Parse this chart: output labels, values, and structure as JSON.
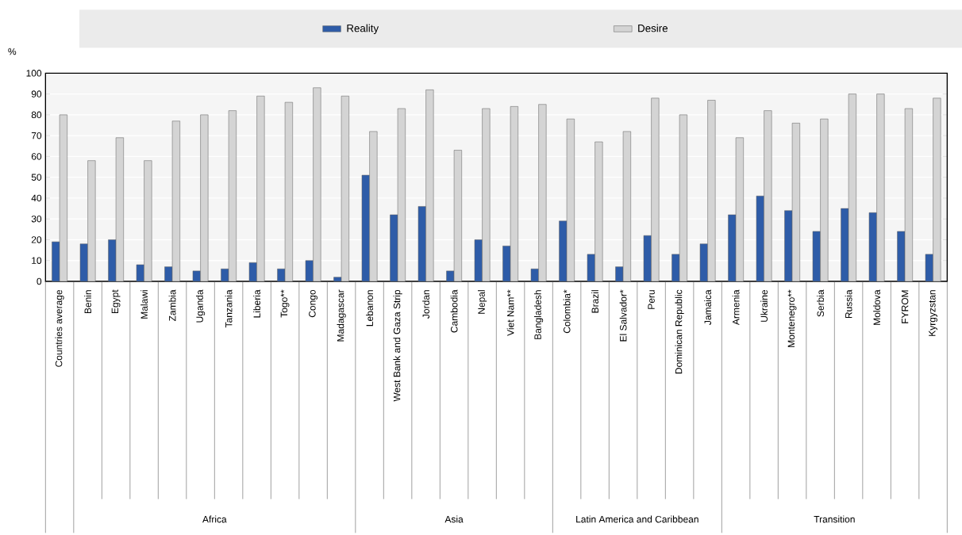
{
  "chart_data": {
    "type": "bar",
    "ylabel": "%",
    "categories": [
      "Countries average",
      "Benin",
      "Egypt",
      "Malawi",
      "Zambia",
      "Uganda",
      "Tanzania",
      "Liberia",
      "Togo**",
      "Congo",
      "Madagascar",
      "Lebanon",
      "West Bank and Gaza Strip",
      "Jordan",
      "Cambodia",
      "Nepal",
      "Viet Nam**",
      "Bangladesh",
      "Colombia*",
      "Brazil",
      "El Salvador*",
      "Peru",
      "Dominican Republic",
      "Jamaica",
      "Armenia",
      "Ukraine",
      "Montenegro**",
      "Serbia",
      "Russia",
      "Moldova",
      "FYROM",
      "Kyrgyzstan"
    ],
    "series": [
      {
        "name": "Reality",
        "color": "#2e5ca8",
        "values": [
          19,
          18,
          20,
          8,
          7,
          5,
          6,
          9,
          6,
          10,
          2,
          51,
          32,
          36,
          5,
          20,
          17,
          6,
          29,
          13,
          7,
          22,
          13,
          18,
          32,
          41,
          34,
          24,
          35,
          33,
          24,
          13
        ]
      },
      {
        "name": "Desire",
        "color": "#d4d4d4",
        "values": [
          80,
          58,
          69,
          58,
          77,
          80,
          82,
          89,
          86,
          93,
          89,
          72,
          83,
          92,
          63,
          83,
          84,
          85,
          78,
          67,
          72,
          88,
          80,
          87,
          69,
          82,
          76,
          78,
          90,
          90,
          83,
          88
        ]
      }
    ],
    "ylim": [
      0,
      100
    ],
    "yticks": [
      0,
      10,
      20,
      30,
      40,
      50,
      60,
      70,
      80,
      90,
      100
    ],
    "grid": "y",
    "legend": "top",
    "annotations": [
      "Africa",
      "Asia",
      "Latin America and Caribbean",
      "Transition"
    ]
  }
}
